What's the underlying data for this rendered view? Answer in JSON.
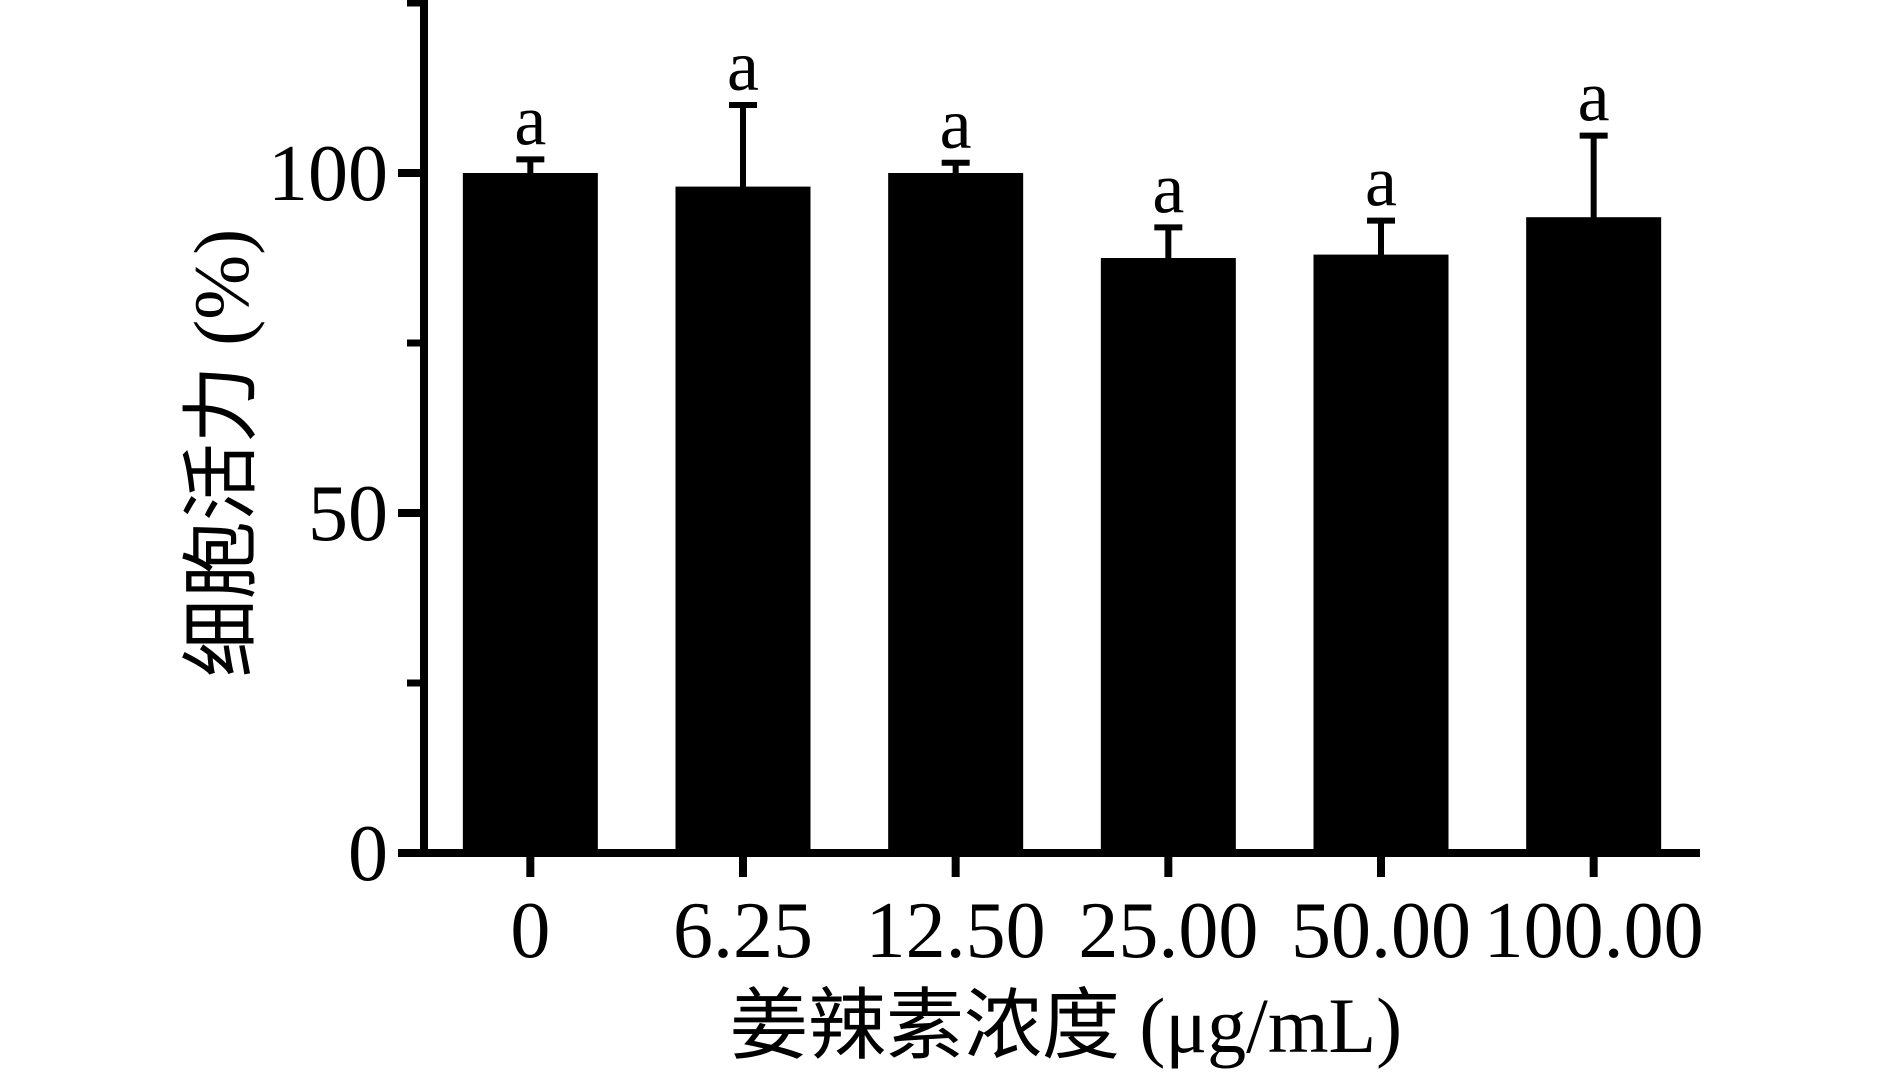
{
  "figure": {
    "background": "#ffffff",
    "ink": "#000000"
  },
  "chart_data": {
    "type": "bar",
    "title": "",
    "xlabel": "姜辣素浓度 (μg/mL)",
    "ylabel": "细胞活力 (%)",
    "categories": [
      "0",
      "6.25",
      "12.50",
      "25.00",
      "50.00",
      "100.00"
    ],
    "values": [
      100,
      98,
      100,
      87.5,
      88,
      93.5
    ],
    "errors": [
      2,
      12,
      1.5,
      4.5,
      5,
      12
    ],
    "error_direction": "upper",
    "sig_labels": [
      "a",
      "a",
      "a",
      "a",
      "a",
      "a"
    ],
    "bar_color": "#000000",
    "ylim": [
      0,
      125
    ],
    "yticks_major": [
      0,
      50,
      100
    ],
    "ytick_labels": [
      "0",
      "50",
      "100"
    ],
    "yticks_minor": [
      25,
      75,
      125
    ],
    "grid": false,
    "legend": null
  }
}
